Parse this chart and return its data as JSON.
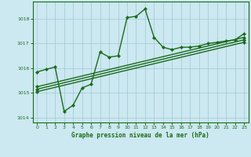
{
  "title": "Graphe pression niveau de la mer (hPa)",
  "background_color": "#cce8f0",
  "grid_color": "#a0c8d8",
  "line_color": "#1a6b1a",
  "xlim": [
    -0.5,
    23.5
  ],
  "ylim": [
    1013.8,
    1018.7
  ],
  "yticks": [
    1014,
    1015,
    1016,
    1017,
    1018
  ],
  "xticks": [
    0,
    1,
    2,
    3,
    4,
    5,
    6,
    7,
    8,
    9,
    10,
    11,
    12,
    13,
    14,
    15,
    16,
    17,
    18,
    19,
    20,
    21,
    22,
    23
  ],
  "series1_x": [
    0,
    1,
    2,
    3,
    4,
    5,
    6,
    7,
    8,
    9,
    10,
    11,
    12,
    13,
    14,
    15,
    16,
    17,
    18,
    19,
    20,
    21,
    22,
    23
  ],
  "series1_y": [
    1015.85,
    1015.95,
    1016.05,
    1014.25,
    1014.5,
    1015.2,
    1015.35,
    1016.65,
    1016.45,
    1016.5,
    1018.05,
    1018.1,
    1018.4,
    1017.25,
    1016.85,
    1016.75,
    1016.85,
    1016.85,
    1016.9,
    1017.0,
    1017.05,
    1017.1,
    1017.15,
    1017.4
  ],
  "series2_x": [
    0,
    23
  ],
  "series2_y": [
    1015.05,
    1017.05
  ],
  "series3_x": [
    0,
    23
  ],
  "series3_y": [
    1015.15,
    1017.15
  ],
  "series4_x": [
    0,
    23
  ],
  "series4_y": [
    1015.25,
    1017.25
  ]
}
